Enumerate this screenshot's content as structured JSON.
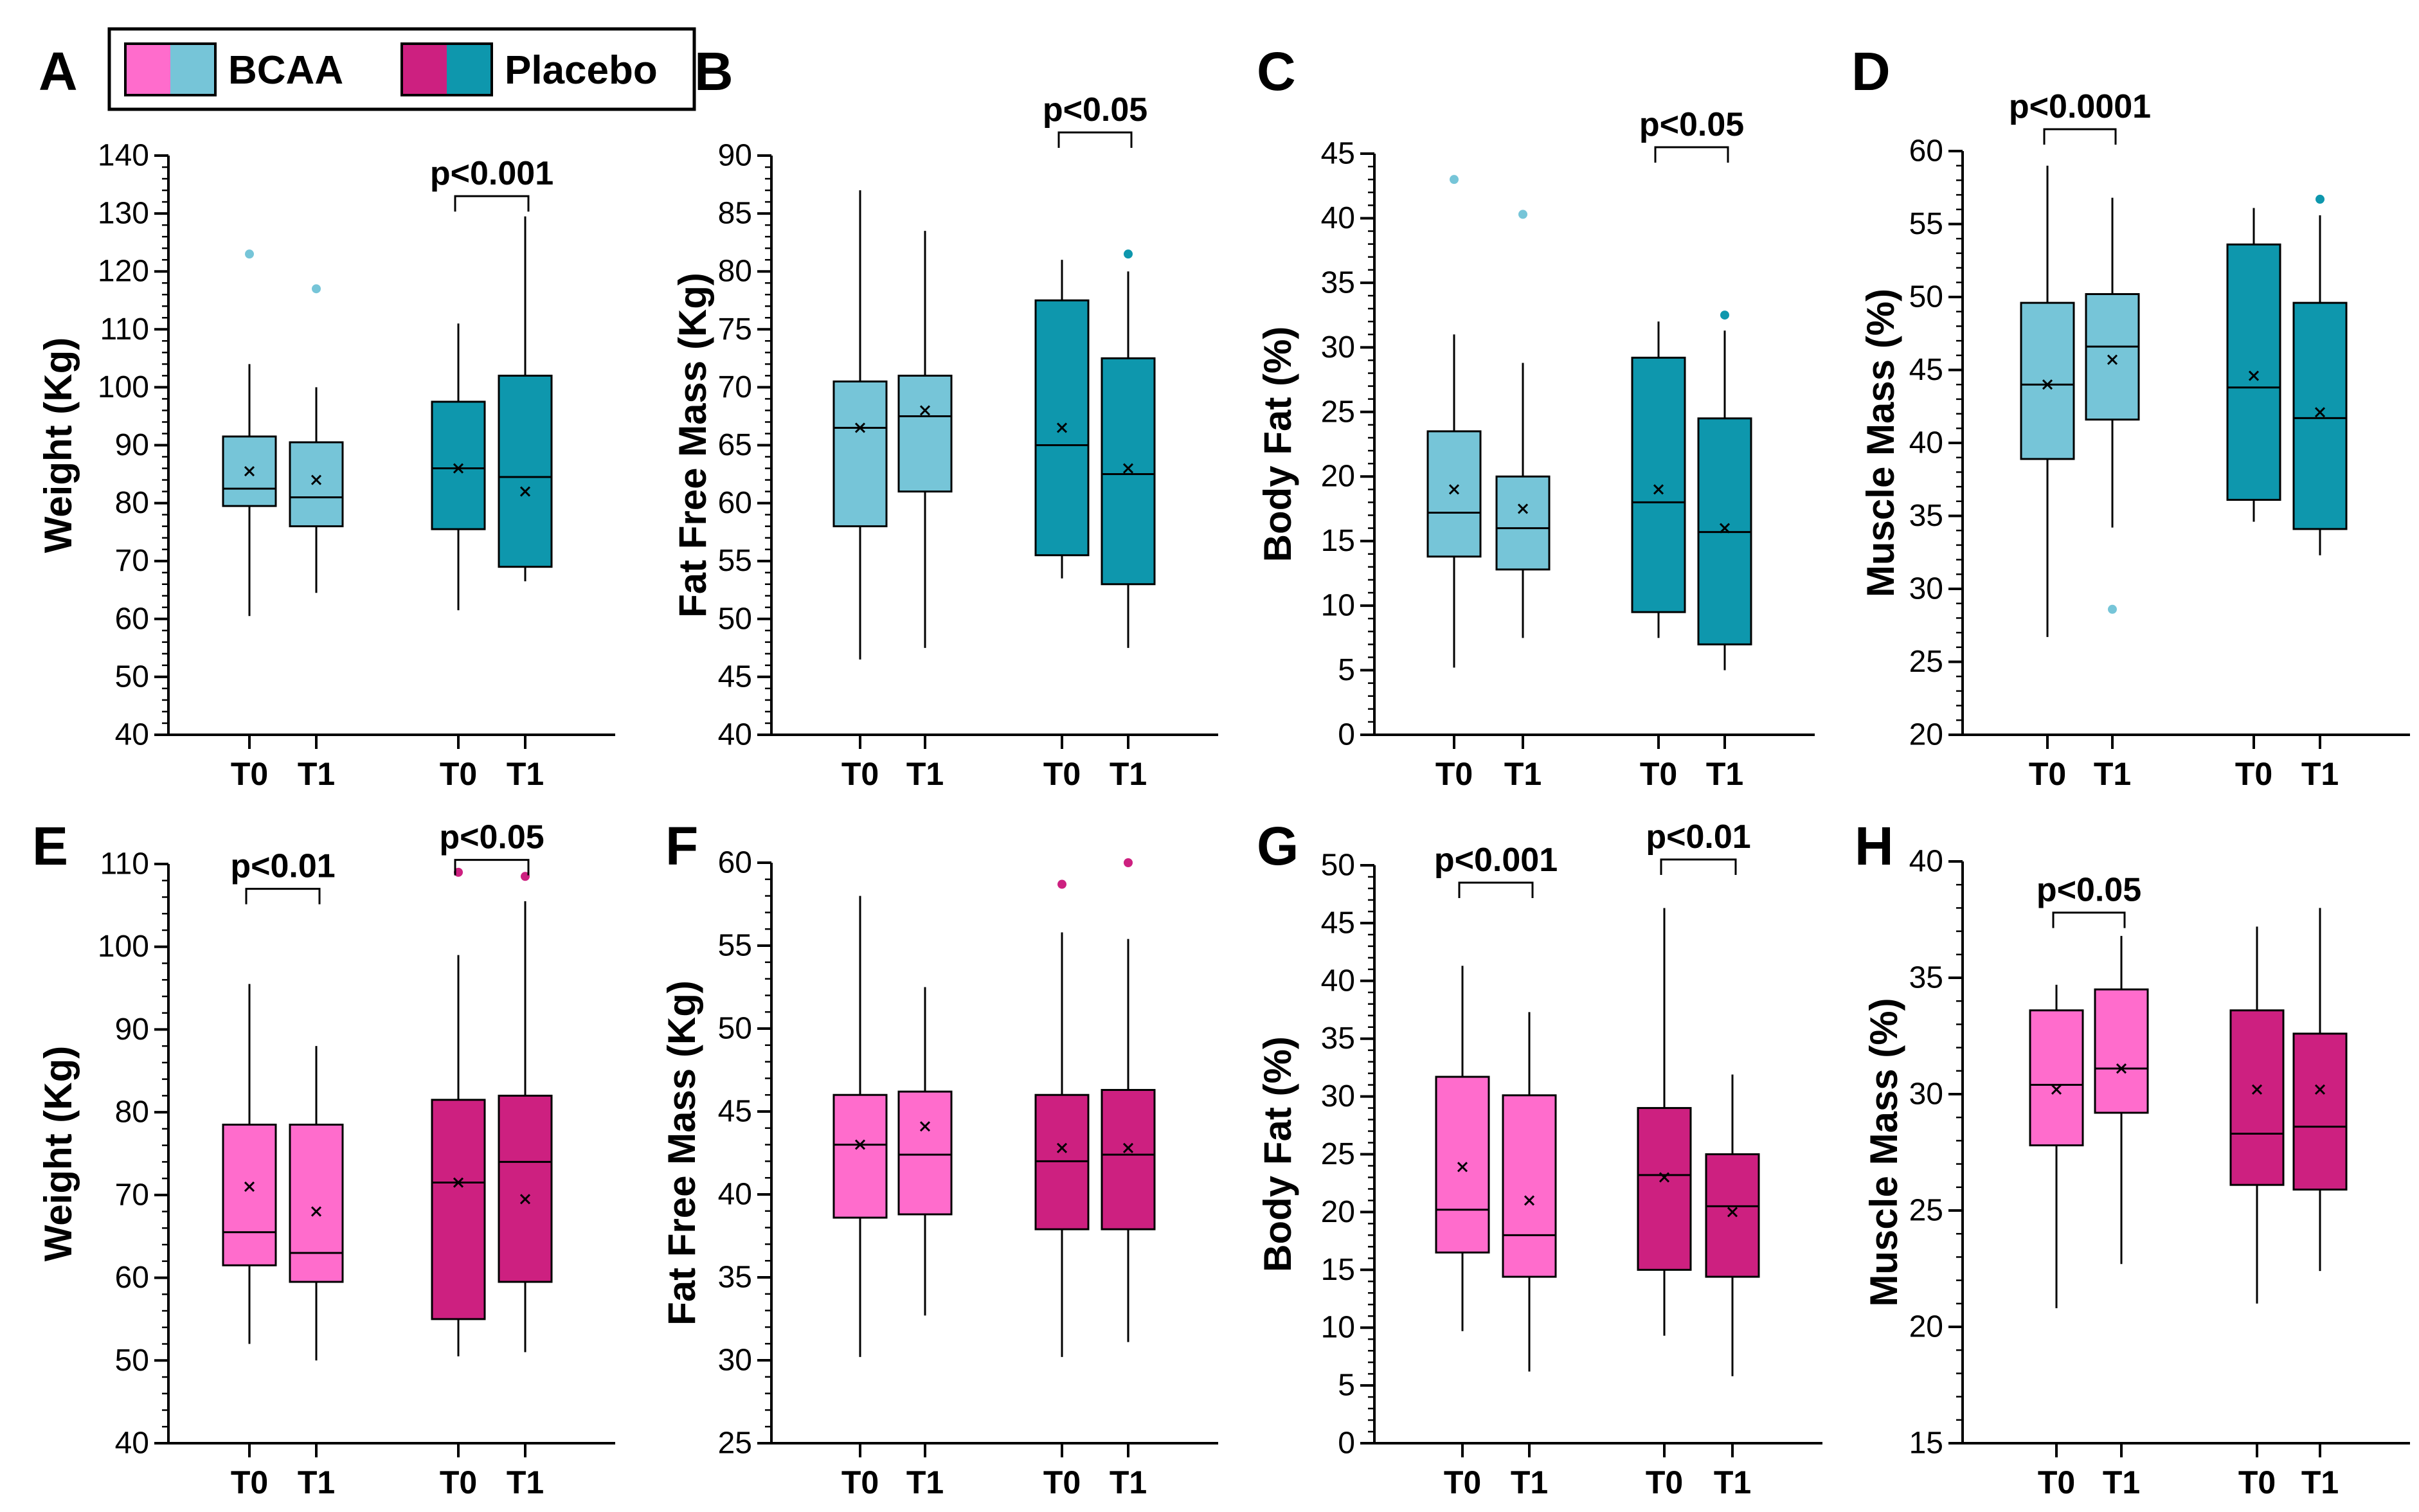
{
  "legend": [
    {
      "label": "BCAA",
      "colors": [
        "#ff6ccc",
        "#76c5d8"
      ]
    },
    {
      "label": "Placebo",
      "colors": [
        "#cd2080",
        "#0e97ad"
      ]
    }
  ],
  "chart_data": [
    {
      "panel": "A",
      "type": "boxplot",
      "ylabel": "Weight (Kg)",
      "ylim": [
        40,
        140
      ],
      "major_step": 10,
      "minor_step": 2,
      "color": "#76c5d8",
      "color_placebo": "#0e97ad",
      "categories": [
        "T0",
        "T1",
        "T0",
        "T1"
      ],
      "boxes": [
        {
          "group": "BCAA",
          "time": "T0",
          "min": 60.5,
          "q1": 79.5,
          "median": 82.5,
          "q3": 91.5,
          "max": 104,
          "mean": 85.5,
          "outliers": [
            123
          ]
        },
        {
          "group": "BCAA",
          "time": "T1",
          "min": 64.5,
          "q1": 76,
          "median": 81,
          "q3": 90.5,
          "max": 100,
          "mean": 84,
          "outliers": [
            117
          ]
        },
        {
          "group": "Placebo",
          "time": "T0",
          "min": 61.5,
          "q1": 75.5,
          "median": 86,
          "q3": 97.5,
          "max": 111,
          "mean": 86,
          "outliers": []
        },
        {
          "group": "Placebo",
          "time": "T1",
          "min": 66.5,
          "q1": 69,
          "median": 84.5,
          "q3": 102,
          "max": 129.5,
          "mean": 82,
          "outliers": []
        }
      ],
      "annotations": [
        {
          "text": "p<0.001",
          "between": [
            2,
            3
          ],
          "y": 133
        }
      ]
    },
    {
      "panel": "B",
      "type": "boxplot",
      "ylabel": "Fat Free Mass (Kg)",
      "ylim": [
        40,
        90
      ],
      "major_step": 5,
      "minor_step": 1,
      "color": "#76c5d8",
      "color_placebo": "#0e97ad",
      "categories": [
        "T0",
        "T1",
        "T0",
        "T1"
      ],
      "boxes": [
        {
          "group": "BCAA",
          "time": "T0",
          "min": 46.5,
          "q1": 58,
          "median": 66.5,
          "q3": 70.5,
          "max": 87,
          "mean": 66.5,
          "outliers": []
        },
        {
          "group": "BCAA",
          "time": "T1",
          "min": 47.5,
          "q1": 61,
          "median": 67.5,
          "q3": 71,
          "max": 83.5,
          "mean": 68,
          "outliers": []
        },
        {
          "group": "Placebo",
          "time": "T0",
          "min": 53.5,
          "q1": 55.5,
          "median": 65,
          "q3": 77.5,
          "max": 81,
          "mean": 66.5,
          "outliers": []
        },
        {
          "group": "Placebo",
          "time": "T1",
          "min": 47.5,
          "q1": 53,
          "median": 62.5,
          "q3": 72.5,
          "max": 80,
          "mean": 63,
          "outliers": [
            81.5
          ]
        }
      ],
      "annotations": [
        {
          "text": "p<0.05",
          "between": [
            2,
            3
          ],
          "y": 92
        }
      ]
    },
    {
      "panel": "C",
      "type": "boxplot",
      "ylabel": "Body Fat (%)",
      "ylim": [
        0,
        45
      ],
      "major_step": 5,
      "minor_step": 1,
      "color": "#76c5d8",
      "color_placebo": "#0e97ad",
      "categories": [
        "T0",
        "T1",
        "T0",
        "T1"
      ],
      "boxes": [
        {
          "group": "BCAA",
          "time": "T0",
          "min": 5.2,
          "q1": 13.8,
          "median": 17.2,
          "q3": 23.5,
          "max": 31,
          "mean": 19,
          "outliers": [
            43
          ]
        },
        {
          "group": "BCAA",
          "time": "T1",
          "min": 7.5,
          "q1": 12.8,
          "median": 16,
          "q3": 20,
          "max": 28.8,
          "mean": 17.5,
          "outliers": [
            40.3
          ]
        },
        {
          "group": "Placebo",
          "time": "T0",
          "min": 7.5,
          "q1": 9.5,
          "median": 18,
          "q3": 29.2,
          "max": 32,
          "mean": 19,
          "outliers": []
        },
        {
          "group": "Placebo",
          "time": "T1",
          "min": 5,
          "q1": 7,
          "median": 15.7,
          "q3": 24.5,
          "max": 31.3,
          "mean": 16,
          "outliers": [
            32.5
          ]
        }
      ],
      "annotations": [
        {
          "text": "p<0.05",
          "between": [
            2,
            3
          ],
          "y": 45.5
        }
      ]
    },
    {
      "panel": "D",
      "type": "boxplot",
      "ylabel": "Muscle Mass (%)",
      "ylim": [
        20,
        60
      ],
      "major_step": 5,
      "minor_step": 1,
      "color": "#76c5d8",
      "color_placebo": "#0e97ad",
      "categories": [
        "T0",
        "T1",
        "T0",
        "T1"
      ],
      "boxes": [
        {
          "group": "BCAA",
          "time": "T0",
          "min": 26.7,
          "q1": 38.9,
          "median": 44,
          "q3": 49.6,
          "max": 59,
          "mean": 44,
          "outliers": []
        },
        {
          "group": "BCAA",
          "time": "T1",
          "min": 34.2,
          "q1": 41.6,
          "median": 46.6,
          "q3": 50.2,
          "max": 56.8,
          "mean": 45.7,
          "outliers": [
            28.6
          ]
        },
        {
          "group": "Placebo",
          "time": "T0",
          "min": 34.6,
          "q1": 36.1,
          "median": 43.8,
          "q3": 53.6,
          "max": 56.1,
          "mean": 44.6,
          "outliers": []
        },
        {
          "group": "Placebo",
          "time": "T1",
          "min": 32.3,
          "q1": 34.1,
          "median": 41.7,
          "q3": 49.6,
          "max": 55.6,
          "mean": 42.1,
          "outliers": [
            56.7
          ]
        }
      ],
      "annotations": [
        {
          "text": "p<0.0001",
          "between": [
            0,
            1
          ],
          "y": 61.5
        }
      ]
    },
    {
      "panel": "E",
      "type": "boxplot",
      "ylabel": "Weight (Kg)",
      "ylim": [
        40,
        110
      ],
      "major_step": 10,
      "minor_step": 2,
      "color": "#ff6ccc",
      "color_placebo": "#cd2080",
      "categories": [
        "T0",
        "T1",
        "T0",
        "T1"
      ],
      "boxes": [
        {
          "group": "BCAA",
          "time": "T0",
          "min": 52,
          "q1": 61.5,
          "median": 65.5,
          "q3": 78.5,
          "max": 95.5,
          "mean": 71,
          "outliers": []
        },
        {
          "group": "BCAA",
          "time": "T1",
          "min": 50,
          "q1": 59.5,
          "median": 63,
          "q3": 78.5,
          "max": 88,
          "mean": 68,
          "outliers": []
        },
        {
          "group": "Placebo",
          "time": "T0",
          "min": 50.5,
          "q1": 55,
          "median": 71.5,
          "q3": 81.5,
          "max": 99,
          "mean": 71.5,
          "outliers": [
            109
          ]
        },
        {
          "group": "Placebo",
          "time": "T1",
          "min": 51,
          "q1": 59.5,
          "median": 74,
          "q3": 82,
          "max": 105.5,
          "mean": 69.5,
          "outliers": [
            108.5
          ]
        }
      ],
      "annotations": [
        {
          "text": "p<0.01",
          "between": [
            0,
            1
          ],
          "y": 107
        },
        {
          "text": "p<0.05",
          "between": [
            2,
            3
          ],
          "y": 110.5
        }
      ]
    },
    {
      "panel": "F",
      "type": "boxplot",
      "ylabel": "Fat Free Mass (Kg)",
      "ylim": [
        25,
        60
      ],
      "major_step": 5,
      "minor_step": 1,
      "color": "#ff6ccc",
      "color_placebo": "#cd2080",
      "categories": [
        "T0",
        "T1",
        "T0",
        "T1"
      ],
      "boxes": [
        {
          "group": "BCAA",
          "time": "T0",
          "min": 30.2,
          "q1": 38.6,
          "median": 43,
          "q3": 46,
          "max": 58,
          "mean": 43,
          "outliers": []
        },
        {
          "group": "BCAA",
          "time": "T1",
          "min": 32.7,
          "q1": 38.8,
          "median": 42.4,
          "q3": 46.2,
          "max": 52.5,
          "mean": 44.1,
          "outliers": []
        },
        {
          "group": "Placebo",
          "time": "T0",
          "min": 30.2,
          "q1": 37.9,
          "median": 42,
          "q3": 46,
          "max": 55.8,
          "mean": 42.8,
          "outliers": [
            58.7
          ]
        },
        {
          "group": "Placebo",
          "time": "T1",
          "min": 31.1,
          "q1": 37.9,
          "median": 42.4,
          "q3": 46.3,
          "max": 55.4,
          "mean": 42.8,
          "outliers": [
            60
          ]
        }
      ],
      "annotations": []
    },
    {
      "panel": "G",
      "type": "boxplot",
      "ylabel": "Body Fat (%)",
      "ylim": [
        0,
        50
      ],
      "major_step": 5,
      "minor_step": 1,
      "color": "#ff6ccc",
      "color_placebo": "#cd2080",
      "categories": [
        "T0",
        "T1",
        "T0",
        "T1"
      ],
      "boxes": [
        {
          "group": "BCAA",
          "time": "T0",
          "min": 9.7,
          "q1": 16.5,
          "median": 20.2,
          "q3": 31.7,
          "max": 41.3,
          "mean": 23.9,
          "outliers": []
        },
        {
          "group": "BCAA",
          "time": "T1",
          "min": 6.2,
          "q1": 14.4,
          "median": 18,
          "q3": 30.1,
          "max": 37.3,
          "mean": 21,
          "outliers": []
        },
        {
          "group": "Placebo",
          "time": "T0",
          "min": 9.3,
          "q1": 15,
          "median": 23.2,
          "q3": 29,
          "max": 46.3,
          "mean": 23,
          "outliers": []
        },
        {
          "group": "Placebo",
          "time": "T1",
          "min": 5.8,
          "q1": 14.4,
          "median": 20.5,
          "q3": 25,
          "max": 31.9,
          "mean": 20,
          "outliers": []
        }
      ],
      "annotations": [
        {
          "text": "p<0.001",
          "between": [
            0,
            1
          ],
          "y": 48.5
        },
        {
          "text": "p<0.01",
          "between": [
            2,
            3
          ],
          "y": 50.5
        }
      ]
    },
    {
      "panel": "H",
      "type": "boxplot",
      "ylabel": "Muscle Mass (%)",
      "ylim": [
        15,
        40
      ],
      "major_step": 5,
      "minor_step": 1,
      "color": "#ff6ccc",
      "color_placebo": "#cd2080",
      "categories": [
        "T0",
        "T1",
        "T0",
        "T1"
      ],
      "boxes": [
        {
          "group": "BCAA",
          "time": "T0",
          "min": 20.8,
          "q1": 27.8,
          "median": 30.4,
          "q3": 33.6,
          "max": 34.7,
          "mean": 30.2,
          "outliers": []
        },
        {
          "group": "BCAA",
          "time": "T1",
          "min": 22.7,
          "q1": 29.2,
          "median": 31.1,
          "q3": 34.5,
          "max": 36.8,
          "mean": 31.1,
          "outliers": []
        },
        {
          "group": "Placebo",
          "time": "T0",
          "min": 21,
          "q1": 26.1,
          "median": 28.3,
          "q3": 33.6,
          "max": 37.2,
          "mean": 30.2,
          "outliers": []
        },
        {
          "group": "Placebo",
          "time": "T1",
          "min": 22.4,
          "q1": 25.9,
          "median": 28.6,
          "q3": 32.6,
          "max": 38,
          "mean": 30.2,
          "outliers": []
        }
      ],
      "annotations": [
        {
          "text": "p<0.05",
          "between": [
            0,
            1
          ],
          "y": 37.8
        }
      ]
    }
  ]
}
